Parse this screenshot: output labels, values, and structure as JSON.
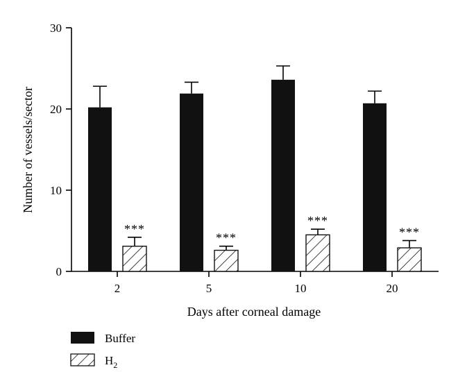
{
  "chart_data": {
    "type": "bar",
    "title": "",
    "xlabel": "Days after corneal damage",
    "ylabel": "Number of vessels/sector",
    "ylim": [
      0,
      30
    ],
    "yticks": [
      "0",
      "10",
      "20",
      "30"
    ],
    "categories": [
      "2",
      "5",
      "10",
      "20"
    ],
    "series": [
      {
        "name": "Buffer",
        "values": [
          20.2,
          21.9,
          23.6,
          20.7
        ],
        "errors": [
          2.6,
          1.4,
          1.7,
          1.5
        ],
        "fill": "solid",
        "color": "#111111"
      },
      {
        "name": "H2",
        "values": [
          3.1,
          2.6,
          4.5,
          2.9
        ],
        "errors": [
          1.1,
          0.5,
          0.7,
          0.9
        ],
        "fill": "hatched",
        "color": "#111111",
        "annotations": [
          "***",
          "***",
          "***",
          "***"
        ]
      }
    ],
    "legend": {
      "placement": "bottom-left",
      "items": [
        {
          "label": "Buffer",
          "text": "Buffer",
          "sub": ""
        },
        {
          "label": "H2",
          "text": "H",
          "sub": "2"
        }
      ]
    },
    "grid": false
  }
}
